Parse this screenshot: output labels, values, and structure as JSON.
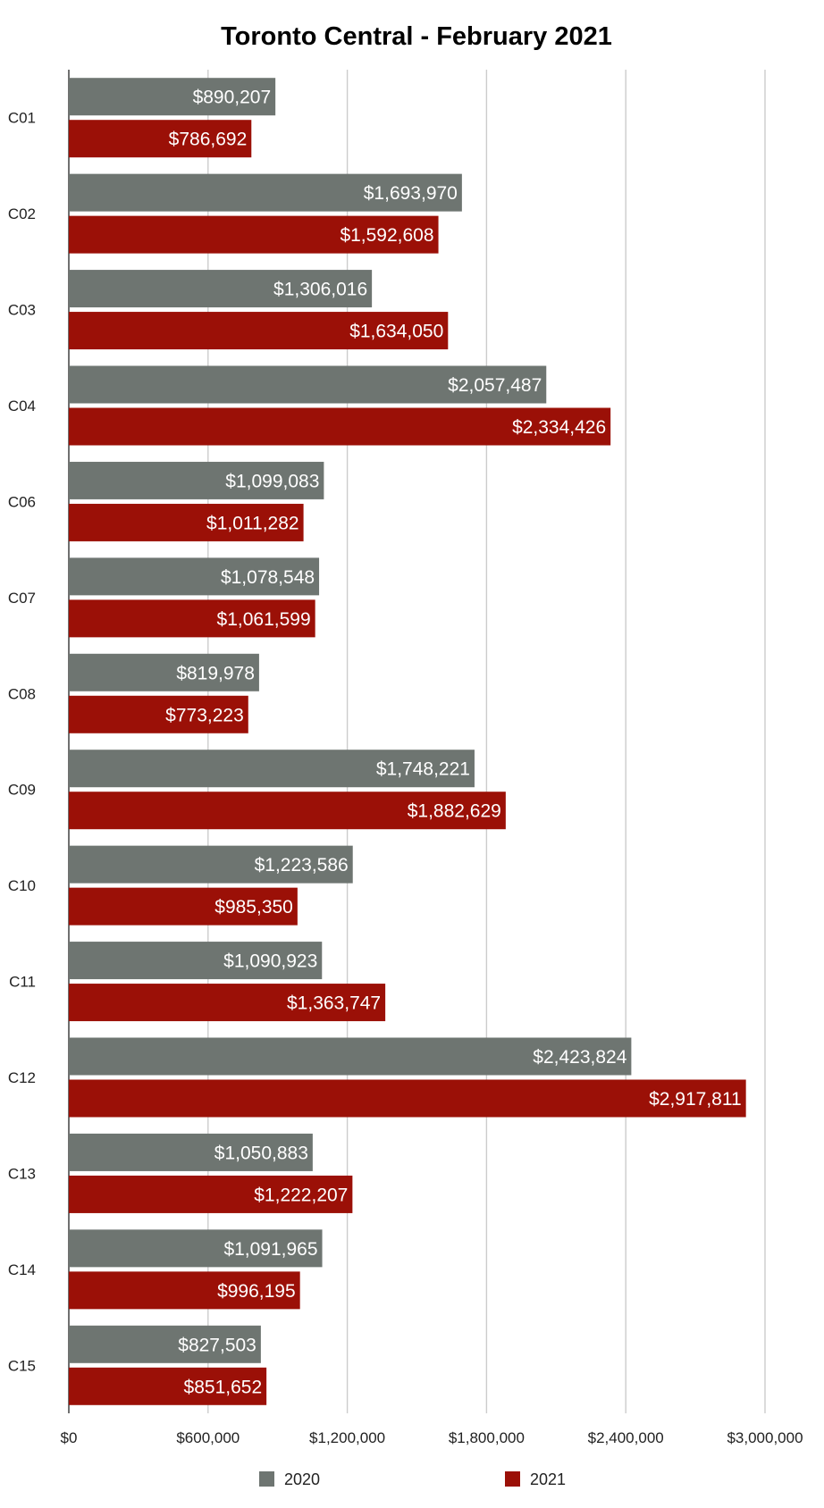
{
  "chart_data": {
    "type": "bar",
    "orientation": "horizontal",
    "title": "Toronto Central - February 2021",
    "xlabel": "",
    "ylabel": "",
    "xlim": [
      0,
      3000000
    ],
    "x_ticks": [
      0,
      600000,
      1200000,
      1800000,
      2400000,
      3000000
    ],
    "x_tick_labels": [
      "$0",
      "$600,000",
      "$1,200,000",
      "$1,800,000",
      "$2,400,000",
      "$3,000,000"
    ],
    "grid": true,
    "legend_position": "bottom",
    "categories": [
      "C01",
      "C02",
      "C03",
      "C04",
      "C06",
      "C07",
      "C08",
      "C09",
      "C10",
      "C11",
      "C12",
      "C13",
      "C14",
      "C15"
    ],
    "series": [
      {
        "name": "2020",
        "color": "#6e7571",
        "values": [
          890207,
          1693970,
          1306016,
          2057487,
          1099083,
          1078548,
          819978,
          1748221,
          1223586,
          1090923,
          2423824,
          1050883,
          1091965,
          827503
        ],
        "labels": [
          "$890,207",
          "$1,693,970",
          "$1,306,016",
          "$2,057,487",
          "$1,099,083",
          "$1,078,548",
          "$819,978",
          "$1,748,221",
          "$1,223,586",
          "$1,090,923",
          "$2,423,824",
          "$1,050,883",
          "$1,091,965",
          "$827,503"
        ]
      },
      {
        "name": "2021",
        "color": "#9b1007",
        "values": [
          786692,
          1592608,
          1634050,
          2334426,
          1011282,
          1061599,
          773223,
          1882629,
          985350,
          1363747,
          2917811,
          1222207,
          996195,
          851652
        ],
        "labels": [
          "$786,692",
          "$1,592,608",
          "$1,634,050",
          "$2,334,426",
          "$1,011,282",
          "$1,061,599",
          "$773,223",
          "$1,882,629",
          "$985,350",
          "$1,363,747",
          "$2,917,811",
          "$1,222,207",
          "$996,195",
          "$851,652"
        ]
      }
    ]
  }
}
